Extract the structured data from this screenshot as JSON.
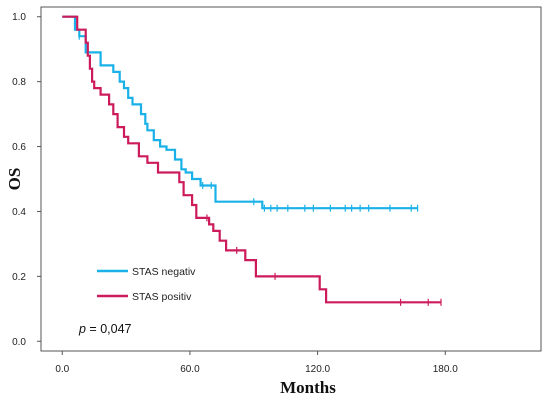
{
  "chart_data": {
    "type": "line",
    "xlabel": "Months",
    "ylabel": "OS",
    "xlim": [
      -10,
      225
    ],
    "ylim": [
      -0.03,
      1.03
    ],
    "x_ticks": [
      0,
      60,
      120,
      180
    ],
    "x_tick_labels": [
      "0.0",
      "60.0",
      "120.0",
      "180.0"
    ],
    "y_ticks": [
      0,
      0.2,
      0.4,
      0.6,
      0.8,
      1.0
    ],
    "y_tick_labels": [
      "0.0",
      "0.2",
      "0.4",
      "0.6",
      "0.8",
      "1.0"
    ],
    "grid": false,
    "legend_position": "bottom-left",
    "annotation": {
      "italic_part": "p",
      "rest": " = 0,047"
    },
    "series": [
      {
        "name": "STAS negativ",
        "color": "#1ab0e8",
        "step_points": [
          [
            0,
            1.0
          ],
          [
            6,
            1.0
          ],
          [
            6,
            0.96
          ],
          [
            8,
            0.96
          ],
          [
            8,
            0.94
          ],
          [
            11,
            0.94
          ],
          [
            11,
            0.89
          ],
          [
            18,
            0.89
          ],
          [
            18,
            0.85
          ],
          [
            24,
            0.85
          ],
          [
            24,
            0.83
          ],
          [
            27,
            0.83
          ],
          [
            27,
            0.8
          ],
          [
            29,
            0.8
          ],
          [
            29,
            0.78
          ],
          [
            31,
            0.78
          ],
          [
            31,
            0.75
          ],
          [
            33,
            0.75
          ],
          [
            33,
            0.73
          ],
          [
            37,
            0.73
          ],
          [
            37,
            0.7
          ],
          [
            39,
            0.7
          ],
          [
            39,
            0.67
          ],
          [
            40,
            0.67
          ],
          [
            40,
            0.65
          ],
          [
            43,
            0.65
          ],
          [
            43,
            0.62
          ],
          [
            46,
            0.62
          ],
          [
            46,
            0.6
          ],
          [
            49,
            0.6
          ],
          [
            49,
            0.59
          ],
          [
            53,
            0.59
          ],
          [
            53,
            0.56
          ],
          [
            56,
            0.56
          ],
          [
            56,
            0.53
          ],
          [
            58,
            0.53
          ],
          [
            58,
            0.52
          ],
          [
            61,
            0.52
          ],
          [
            61,
            0.5
          ],
          [
            65,
            0.5
          ],
          [
            65,
            0.48
          ],
          [
            72,
            0.48
          ],
          [
            72,
            0.43
          ],
          [
            94,
            0.43
          ],
          [
            94,
            0.41
          ],
          [
            167,
            0.41
          ]
        ],
        "censored": [
          [
            8,
            0.94
          ],
          [
            66,
            0.48
          ],
          [
            70,
            0.48
          ],
          [
            90,
            0.43
          ],
          [
            95,
            0.41
          ],
          [
            98,
            0.41
          ],
          [
            101,
            0.41
          ],
          [
            106,
            0.41
          ],
          [
            114,
            0.41
          ],
          [
            118,
            0.41
          ],
          [
            126,
            0.41
          ],
          [
            133,
            0.41
          ],
          [
            136,
            0.41
          ],
          [
            140,
            0.41
          ],
          [
            144,
            0.41
          ],
          [
            154,
            0.41
          ],
          [
            164,
            0.41
          ],
          [
            167,
            0.41
          ]
        ]
      },
      {
        "name": "STAS positiv",
        "color": "#cc1a5a",
        "step_points": [
          [
            0,
            1.0
          ],
          [
            7,
            1.0
          ],
          [
            7,
            0.96
          ],
          [
            11,
            0.96
          ],
          [
            11,
            0.92
          ],
          [
            12,
            0.92
          ],
          [
            12,
            0.88
          ],
          [
            13,
            0.88
          ],
          [
            13,
            0.84
          ],
          [
            14,
            0.84
          ],
          [
            14,
            0.8
          ],
          [
            15,
            0.8
          ],
          [
            15,
            0.78
          ],
          [
            18,
            0.78
          ],
          [
            18,
            0.76
          ],
          [
            22,
            0.76
          ],
          [
            22,
            0.73
          ],
          [
            24,
            0.73
          ],
          [
            24,
            0.7
          ],
          [
            26,
            0.7
          ],
          [
            26,
            0.66
          ],
          [
            29,
            0.66
          ],
          [
            29,
            0.63
          ],
          [
            31,
            0.63
          ],
          [
            31,
            0.61
          ],
          [
            36,
            0.61
          ],
          [
            36,
            0.57
          ],
          [
            40,
            0.57
          ],
          [
            40,
            0.55
          ],
          [
            45,
            0.55
          ],
          [
            45,
            0.52
          ],
          [
            55,
            0.52
          ],
          [
            55,
            0.49
          ],
          [
            57,
            0.49
          ],
          [
            57,
            0.45
          ],
          [
            61,
            0.45
          ],
          [
            61,
            0.42
          ],
          [
            63,
            0.42
          ],
          [
            63,
            0.38
          ],
          [
            69,
            0.38
          ],
          [
            69,
            0.36
          ],
          [
            71,
            0.36
          ],
          [
            71,
            0.34
          ],
          [
            74,
            0.34
          ],
          [
            74,
            0.31
          ],
          [
            77,
            0.31
          ],
          [
            77,
            0.28
          ],
          [
            86,
            0.28
          ],
          [
            86,
            0.25
          ],
          [
            91,
            0.25
          ],
          [
            91,
            0.2
          ],
          [
            121,
            0.2
          ],
          [
            121,
            0.16
          ],
          [
            124,
            0.16
          ],
          [
            124,
            0.12
          ],
          [
            178,
            0.12
          ]
        ],
        "censored": [
          [
            68,
            0.38
          ],
          [
            82,
            0.28
          ],
          [
            100,
            0.2
          ],
          [
            159,
            0.12
          ],
          [
            172,
            0.12
          ],
          [
            178,
            0.12
          ]
        ]
      }
    ]
  }
}
